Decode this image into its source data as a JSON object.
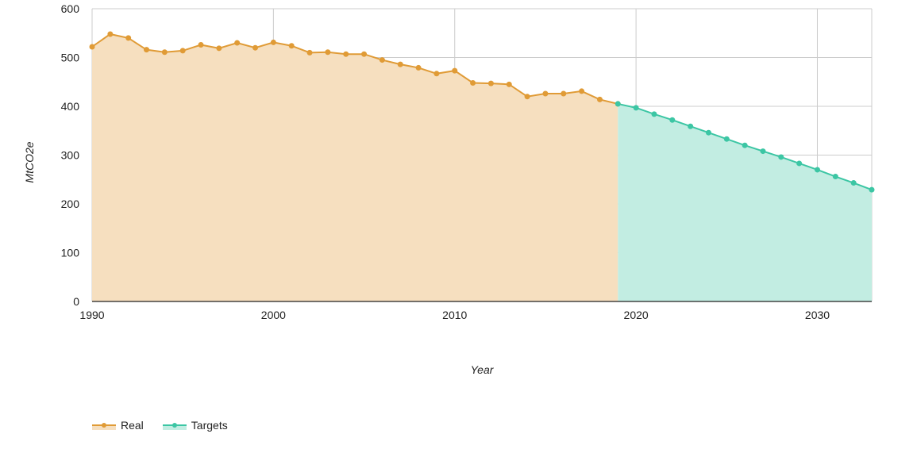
{
  "chart_data": {
    "type": "area",
    "xlabel": "Year",
    "ylabel": "MtCO2e",
    "xlim": [
      1990,
      2033
    ],
    "ylim": [
      0,
      600
    ],
    "x_ticks": [
      1990,
      2000,
      2010,
      2020,
      2030
    ],
    "y_ticks": [
      0,
      100,
      200,
      300,
      400,
      500,
      600
    ],
    "grid": true,
    "legend_position": "bottom-left",
    "series": [
      {
        "name": "Real",
        "color": "#e09b36",
        "fill": "#f6dfbf",
        "x": [
          1990,
          1991,
          1992,
          1993,
          1994,
          1995,
          1996,
          1997,
          1998,
          1999,
          2000,
          2001,
          2002,
          2003,
          2004,
          2005,
          2006,
          2007,
          2008,
          2009,
          2010,
          2011,
          2012,
          2013,
          2014,
          2015,
          2016,
          2017,
          2018,
          2019
        ],
        "values": [
          522,
          548,
          540,
          516,
          511,
          514,
          526,
          519,
          530,
          520,
          531,
          524,
          510,
          511,
          507,
          507,
          495,
          486,
          479,
          467,
          473,
          448,
          447,
          445,
          420,
          426,
          426,
          431,
          414,
          405
        ]
      },
      {
        "name": "Targets",
        "color": "#3cc6a4",
        "fill": "#c2ede2",
        "x": [
          2019,
          2020,
          2021,
          2022,
          2023,
          2024,
          2025,
          2026,
          2027,
          2028,
          2029,
          2030,
          2031,
          2032,
          2033
        ],
        "values": [
          405,
          397,
          384,
          372,
          359,
          346,
          333,
          320,
          308,
          296,
          283,
          270,
          256,
          243,
          229
        ]
      }
    ]
  }
}
